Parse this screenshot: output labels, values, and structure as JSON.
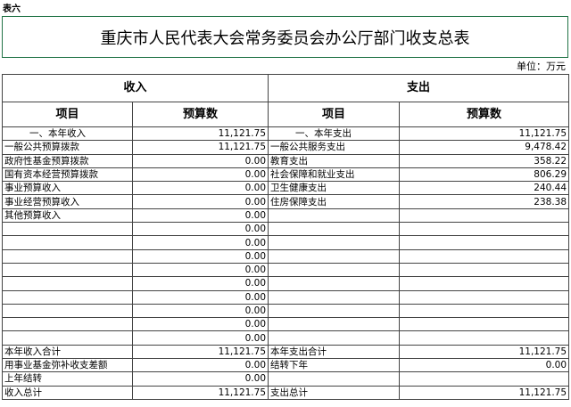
{
  "sheet_label": "表六",
  "title": "重庆市人民代表大会常务委员会办公厅部门收支总表",
  "unit": "单位：万元",
  "income_header": "收入",
  "expense_header": "支出",
  "col_item": "项目",
  "col_budget": "预算数",
  "rows": [
    {
      "in_item": "一、本年收入",
      "in_val": "11,121.75",
      "out_item": "一、本年支出",
      "out_val": "11,121.75"
    },
    {
      "in_item": "一般公共预算拨款",
      "in_val": "11,121.75",
      "out_item": "一般公共服务支出",
      "out_val": "9,478.42"
    },
    {
      "in_item": "政府性基金预算拨款",
      "in_val": "0.00",
      "out_item": "教育支出",
      "out_val": "358.22"
    },
    {
      "in_item": "国有资本经营预算拨款",
      "in_val": "0.00",
      "out_item": "社会保障和就业支出",
      "out_val": "806.29"
    },
    {
      "in_item": "事业预算收入",
      "in_val": "0.00",
      "out_item": "卫生健康支出",
      "out_val": "240.44"
    },
    {
      "in_item": "事业经营预算收入",
      "in_val": "0.00",
      "out_item": "住房保障支出",
      "out_val": "238.38"
    },
    {
      "in_item": "其他预算收入",
      "in_val": "0.00",
      "out_item": "",
      "out_val": ""
    },
    {
      "in_item": "",
      "in_val": "0.00",
      "out_item": "",
      "out_val": ""
    },
    {
      "in_item": "",
      "in_val": "0.00",
      "out_item": "",
      "out_val": ""
    },
    {
      "in_item": "",
      "in_val": "0.00",
      "out_item": "",
      "out_val": ""
    },
    {
      "in_item": "",
      "in_val": "0.00",
      "out_item": "",
      "out_val": ""
    },
    {
      "in_item": "",
      "in_val": "0.00",
      "out_item": "",
      "out_val": ""
    },
    {
      "in_item": "",
      "in_val": "0.00",
      "out_item": "",
      "out_val": ""
    },
    {
      "in_item": "",
      "in_val": "0.00",
      "out_item": "",
      "out_val": ""
    },
    {
      "in_item": "",
      "in_val": "0.00",
      "out_item": "",
      "out_val": ""
    },
    {
      "in_item": "",
      "in_val": "0.00",
      "out_item": "",
      "out_val": ""
    },
    {
      "in_item": "本年收入合计",
      "in_val": "11,121.75",
      "out_item": "本年支出合计",
      "out_val": "11,121.75"
    },
    {
      "in_item": "用事业基金弥补收支差额",
      "in_val": "0.00",
      "out_item": "结转下年",
      "out_val": "0.00"
    },
    {
      "in_item": "上年结转",
      "in_val": "0.00",
      "out_item": "",
      "out_val": ""
    },
    {
      "in_item": "收入总计",
      "in_val": "11,121.75",
      "out_item": "支出总计",
      "out_val": "11,121.75"
    }
  ]
}
